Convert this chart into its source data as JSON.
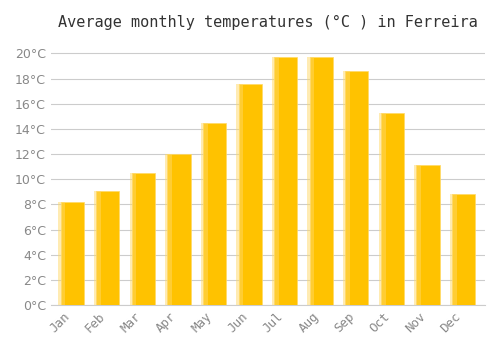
{
  "title": "Average monthly temperatures (°C ) in Ferreira",
  "months": [
    "Jan",
    "Feb",
    "Mar",
    "Apr",
    "May",
    "Jun",
    "Jul",
    "Aug",
    "Sep",
    "Oct",
    "Nov",
    "Dec"
  ],
  "values": [
    8.2,
    9.1,
    10.5,
    12.0,
    14.5,
    17.6,
    19.7,
    19.7,
    18.6,
    15.3,
    11.1,
    8.8
  ],
  "bar_color_face": "#FFC200",
  "bar_color_edge": "#FFD966",
  "ylim": [
    0,
    21
  ],
  "ytick_step": 2,
  "background_color": "#FFFFFF",
  "grid_color": "#CCCCCC",
  "title_fontsize": 11,
  "tick_fontsize": 9,
  "font_color": "#888888"
}
